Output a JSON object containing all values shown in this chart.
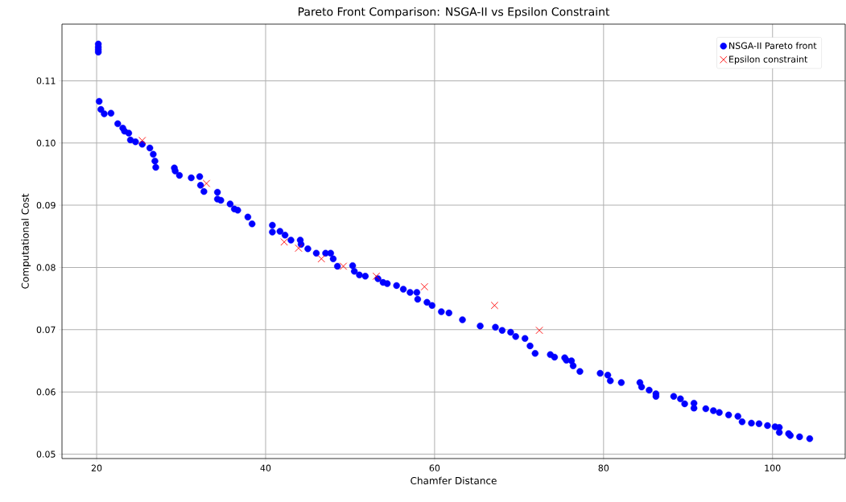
{
  "chart_data": {
    "type": "scatter",
    "title": "Pareto Front Comparison: NSGA-II vs Epsilon Constraint",
    "xlabel": "Chamfer Distance",
    "ylabel": "Computational Cost",
    "xlim": [
      15.9,
      108.6
    ],
    "ylim": [
      0.0493,
      0.1191
    ],
    "xticks": [
      20,
      40,
      60,
      80,
      100
    ],
    "yticks": [
      0.05,
      0.06,
      0.07,
      0.08,
      0.09,
      {
        "value": 0.1,
        "label": "0.10"
      },
      0.11
    ],
    "grid": true,
    "legend": "top right",
    "series": [
      {
        "name": "NSGA-II Pareto front",
        "color": "#0000ff",
        "marker": "circle",
        "x": [
          20.2,
          20.2,
          20.2,
          20.2,
          20.3,
          20.5,
          20.9,
          21.7,
          22.5,
          23.1,
          23.3,
          23.8,
          24.0,
          24.6,
          25.4,
          26.3,
          26.7,
          26.9,
          27.0,
          29.2,
          29.3,
          29.8,
          31.2,
          32.2,
          32.3,
          32.7,
          34.3,
          34.3,
          34.7,
          35.8,
          36.3,
          36.7,
          37.9,
          38.4,
          40.8,
          40.8,
          41.7,
          42.3,
          43.0,
          44.1,
          44.2,
          45.0,
          46.0,
          47.1,
          47.7,
          48.0,
          48.5,
          50.3,
          50.5,
          51.1,
          51.8,
          53.3,
          53.9,
          54.4,
          55.5,
          56.3,
          57.1,
          57.9,
          58.0,
          59.1,
          59.7,
          60.8,
          61.7,
          63.3,
          65.4,
          67.2,
          68.0,
          69.0,
          69.6,
          70.7,
          71.3,
          71.9,
          73.7,
          74.2,
          75.4,
          75.6,
          76.2,
          76.4,
          77.2,
          79.6,
          80.5,
          80.8,
          82.1,
          84.3,
          84.5,
          85.4,
          86.2,
          86.2,
          88.3,
          89.1,
          89.6,
          90.7,
          90.7,
          92.1,
          93.0,
          93.7,
          94.8,
          95.9,
          96.4,
          97.5,
          98.4,
          99.4,
          100.3,
          100.8,
          100.8,
          101.9,
          102.1,
          103.2,
          104.4
        ],
        "values": [
          0.1159,
          0.1154,
          0.115,
          0.1146,
          0.1067,
          0.1054,
          0.1047,
          0.1048,
          0.1031,
          0.1024,
          0.1019,
          0.1016,
          0.1005,
          0.1002,
          0.0998,
          0.0992,
          0.0982,
          0.0971,
          0.0961,
          0.096,
          0.0955,
          0.0948,
          0.0944,
          0.0946,
          0.0932,
          0.0922,
          0.0921,
          0.091,
          0.0908,
          0.0902,
          0.0894,
          0.0892,
          0.0881,
          0.087,
          0.0868,
          0.0857,
          0.0858,
          0.0852,
          0.0844,
          0.0844,
          0.0837,
          0.083,
          0.0823,
          0.0823,
          0.0823,
          0.0814,
          0.0802,
          0.0803,
          0.0794,
          0.0788,
          0.0786,
          0.0782,
          0.0776,
          0.0774,
          0.0771,
          0.0765,
          0.076,
          0.076,
          0.0749,
          0.0744,
          0.0739,
          0.0729,
          0.0727,
          0.0716,
          0.0706,
          0.0704,
          0.0699,
          0.0696,
          0.0689,
          0.0686,
          0.0674,
          0.0662,
          0.066,
          0.0656,
          0.0655,
          0.0651,
          0.065,
          0.0642,
          0.0633,
          0.063,
          0.0627,
          0.0618,
          0.0615,
          0.0615,
          0.0608,
          0.0603,
          0.0597,
          0.0593,
          0.0593,
          0.0589,
          0.0581,
          0.0582,
          0.0574,
          0.0573,
          0.057,
          0.0567,
          0.0563,
          0.0561,
          0.0552,
          0.055,
          0.0549,
          0.0546,
          0.0544,
          0.0543,
          0.0535,
          0.0533,
          0.053,
          0.0528,
          0.0525
        ]
      },
      {
        "name": "Epsilon constraint",
        "color": "#ff0000",
        "marker": "cross",
        "x": [
          25.4,
          33.0,
          42.2,
          43.9,
          46.6,
          49.2,
          53.1,
          58.8,
          67.1,
          72.4
        ],
        "values": [
          0.1004,
          0.0935,
          0.0841,
          0.0831,
          0.0814,
          0.0802,
          0.0786,
          0.0769,
          0.0739,
          0.0699
        ]
      }
    ]
  }
}
